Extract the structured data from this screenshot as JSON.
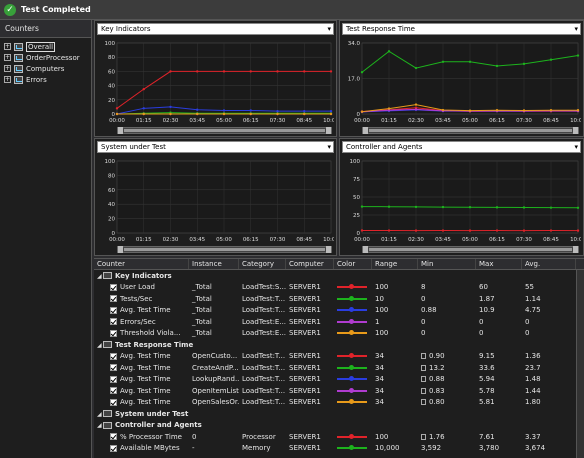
{
  "window": {
    "title": "Test Completed"
  },
  "counters_panel": {
    "header": "Counters",
    "tree": [
      {
        "label": "Overall",
        "selected": true
      },
      {
        "label": "OrderProcessor",
        "selected": false
      },
      {
        "label": "Computers",
        "selected": false
      },
      {
        "label": "Errors",
        "selected": false
      }
    ]
  },
  "graphs": [
    {
      "title": "Key Indicators",
      "y_ticks": [
        "100",
        "80",
        "60",
        "40",
        "20",
        "0"
      ],
      "x_ticks": [
        "00:00",
        "01:15",
        "02:30",
        "03:45",
        "05:00",
        "06:15",
        "07:30",
        "08:45",
        "10:00"
      ]
    },
    {
      "title": "Test Response Time",
      "y_ticks": [
        "34.0",
        "17.0",
        "0"
      ],
      "x_ticks": [
        "00:00",
        "01:15",
        "02:30",
        "03:45",
        "05:00",
        "06:15",
        "07:30",
        "08:45",
        "10:00"
      ]
    },
    {
      "title": "System under Test",
      "y_ticks": [
        "100",
        "80",
        "60",
        "40",
        "20",
        "0"
      ],
      "x_ticks": [
        "00:00",
        "01:15",
        "02:30",
        "03:45",
        "05:00",
        "06:15",
        "07:30",
        "08:45",
        "10:00"
      ]
    },
    {
      "title": "Controller and Agents",
      "y_ticks": [
        "100",
        "75",
        "50",
        "25",
        "0"
      ],
      "x_ticks": [
        "00:00",
        "01:15",
        "02:30",
        "03:45",
        "05:00",
        "06:15",
        "07:30",
        "08:45",
        "10:00"
      ]
    }
  ],
  "chart_data": [
    {
      "type": "line",
      "title": "Key Indicators",
      "ylim": [
        0,
        100
      ],
      "x": [
        "00:00",
        "01:15",
        "02:30",
        "03:45",
        "05:00",
        "06:15",
        "07:30",
        "08:45",
        "10:00"
      ],
      "series": [
        {
          "name": "User Load",
          "color": "#e0232a",
          "values": [
            8,
            35,
            60,
            60,
            60,
            60,
            60,
            60,
            60
          ]
        },
        {
          "name": "Tests/Sec",
          "color": "#1db31d",
          "values": [
            0,
            1,
            2,
            1,
            1,
            1,
            1,
            1,
            1
          ]
        },
        {
          "name": "Avg. Test Time",
          "color": "#2a3de0",
          "values": [
            0,
            8,
            10,
            6,
            5,
            5,
            4,
            4,
            4
          ]
        },
        {
          "name": "Errors/Sec",
          "color": "#b03cd0",
          "values": [
            0,
            0,
            0,
            0,
            0,
            0,
            0,
            0,
            0
          ]
        },
        {
          "name": "Threshold Violations",
          "color": "#e89a1a",
          "values": [
            0,
            0,
            0,
            0,
            0,
            0,
            0,
            0,
            0
          ]
        }
      ]
    },
    {
      "type": "line",
      "title": "Test Response Time",
      "ylim": [
        0,
        34
      ],
      "x": [
        "00:00",
        "01:15",
        "02:30",
        "03:45",
        "05:00",
        "06:15",
        "07:30",
        "08:45",
        "10:00"
      ],
      "series": [
        {
          "name": "Avg. Test Time OpenCustomer",
          "color": "#e0232a",
          "values": [
            1.2,
            2.0,
            3.0,
            1.6,
            1.3,
            1.4,
            1.3,
            1.3,
            1.4
          ]
        },
        {
          "name": "Avg. Test Time CreateAndPlace",
          "color": "#1db31d",
          "values": [
            20,
            30,
            22,
            25,
            25,
            23,
            24,
            26,
            28
          ]
        },
        {
          "name": "Avg. Test Time LookupRandom",
          "color": "#2a3de0",
          "values": [
            1.0,
            1.5,
            2.0,
            1.4,
            1.5,
            1.4,
            1.4,
            1.5,
            1.5
          ]
        },
        {
          "name": "Avg. Test Time OpenItemList",
          "color": "#b03cd0",
          "values": [
            1.0,
            1.8,
            2.2,
            1.5,
            1.3,
            1.4,
            1.4,
            1.5,
            1.4
          ]
        },
        {
          "name": "Avg. Test Time OpenSalesOrder",
          "color": "#e89a1a",
          "values": [
            1.1,
            2.6,
            4.5,
            1.9,
            1.6,
            1.8,
            1.7,
            1.8,
            1.8
          ]
        }
      ]
    },
    {
      "type": "line",
      "title": "System under Test",
      "ylim": [
        0,
        100
      ],
      "x": [
        "00:00",
        "01:15",
        "02:30",
        "03:45",
        "05:00",
        "06:15",
        "07:30",
        "08:45",
        "10:00"
      ],
      "series": []
    },
    {
      "type": "line",
      "title": "Controller and Agents",
      "ylim": [
        0,
        100
      ],
      "x": [
        "00:00",
        "01:15",
        "02:30",
        "03:45",
        "05:00",
        "06:15",
        "07:30",
        "08:45",
        "10:00"
      ],
      "series": [
        {
          "name": "% Processor Time",
          "color": "#e0232a",
          "values": [
            3.5,
            3.4,
            3.3,
            3.4,
            3.3,
            3.4,
            3.3,
            3.4,
            3.3
          ]
        },
        {
          "name": "Available MBytes",
          "color": "#1db31d",
          "values": [
            36.7,
            36.5,
            36.2,
            36.0,
            35.8,
            35.6,
            35.4,
            35.2,
            35.0
          ]
        }
      ]
    }
  ],
  "table": {
    "columns": [
      "Counter",
      "Instance",
      "Category",
      "Computer",
      "Color",
      "Range",
      "Min",
      "Max",
      "Avg."
    ],
    "rows": [
      {
        "type": "group",
        "label": "Key Indicators"
      },
      {
        "type": "item",
        "counter": "User Load",
        "instance": "_Total",
        "category": "LoadTest:S...",
        "computer": "SERVER1",
        "color": "#e0232a",
        "range": "100",
        "range_icon": false,
        "min": "8",
        "max": "60",
        "avg": "55"
      },
      {
        "type": "item",
        "counter": "Tests/Sec",
        "instance": "_Total",
        "category": "LoadTest:T...",
        "computer": "SERVER1",
        "color": "#1db31d",
        "range": "10",
        "range_icon": false,
        "min": "0",
        "max": "1.87",
        "avg": "1.14"
      },
      {
        "type": "item",
        "counter": "Avg. Test Time",
        "instance": "_Total",
        "category": "LoadTest:T...",
        "computer": "SERVER1",
        "color": "#2a3de0",
        "range": "100",
        "range_icon": false,
        "min": "0.88",
        "max": "10.9",
        "avg": "4.75"
      },
      {
        "type": "item",
        "counter": "Errors/Sec",
        "instance": "_Total",
        "category": "LoadTest:E...",
        "computer": "SERVER1",
        "color": "#b03cd0",
        "range": "1",
        "range_icon": false,
        "min": "0",
        "max": "0",
        "avg": "0"
      },
      {
        "type": "item",
        "counter": "Threshold Viola...",
        "instance": "_Total",
        "category": "LoadTest:E...",
        "computer": "SERVER1",
        "color": "#e89a1a",
        "range": "100",
        "range_icon": false,
        "min": "0",
        "max": "0",
        "avg": "0"
      },
      {
        "type": "group",
        "label": "Test Response Time"
      },
      {
        "type": "item",
        "counter": "Avg. Test Time",
        "instance": "OpenCusto...",
        "category": "LoadTest:T...",
        "computer": "SERVER1",
        "color": "#e0232a",
        "range": "34",
        "range_icon": true,
        "min": "0.90",
        "max": "9.15",
        "avg": "1.36"
      },
      {
        "type": "item",
        "counter": "Avg. Test Time",
        "instance": "CreateAndP...",
        "category": "LoadTest:T...",
        "computer": "SERVER1",
        "color": "#1db31d",
        "range": "34",
        "range_icon": true,
        "min": "13.2",
        "max": "33.6",
        "avg": "23.7"
      },
      {
        "type": "item",
        "counter": "Avg. Test Time",
        "instance": "LookupRand...",
        "category": "LoadTest:T...",
        "computer": "SERVER1",
        "color": "#2a3de0",
        "range": "34",
        "range_icon": true,
        "min": "0.88",
        "max": "5.94",
        "avg": "1.48"
      },
      {
        "type": "item",
        "counter": "Avg. Test Time",
        "instance": "OpenItemList",
        "category": "LoadTest:T...",
        "computer": "SERVER1",
        "color": "#b03cd0",
        "range": "34",
        "range_icon": true,
        "min": "0.83",
        "max": "5.78",
        "avg": "1.44"
      },
      {
        "type": "item",
        "counter": "Avg. Test Time",
        "instance": "OpenSalesOr...",
        "category": "LoadTest:T...",
        "computer": "SERVER1",
        "color": "#e89a1a",
        "range": "34",
        "range_icon": true,
        "min": "0.80",
        "max": "5.81",
        "avg": "1.80"
      },
      {
        "type": "group",
        "label": "System under Test"
      },
      {
        "type": "group",
        "label": "Controller and Agents"
      },
      {
        "type": "item",
        "counter": "% Processor Time",
        "instance": "0",
        "category": "Processor",
        "computer": "SERVER1",
        "color": "#e0232a",
        "range": "100",
        "range_icon": true,
        "min": "1.76",
        "max": "7.61",
        "avg": "3.37"
      },
      {
        "type": "item",
        "counter": "Available MBytes",
        "instance": "-",
        "category": "Memory",
        "computer": "SERVER1",
        "color": "#1db31d",
        "range": "10,000",
        "range_icon": false,
        "min": "3,592",
        "max": "3,780",
        "avg": "3,674"
      }
    ]
  }
}
